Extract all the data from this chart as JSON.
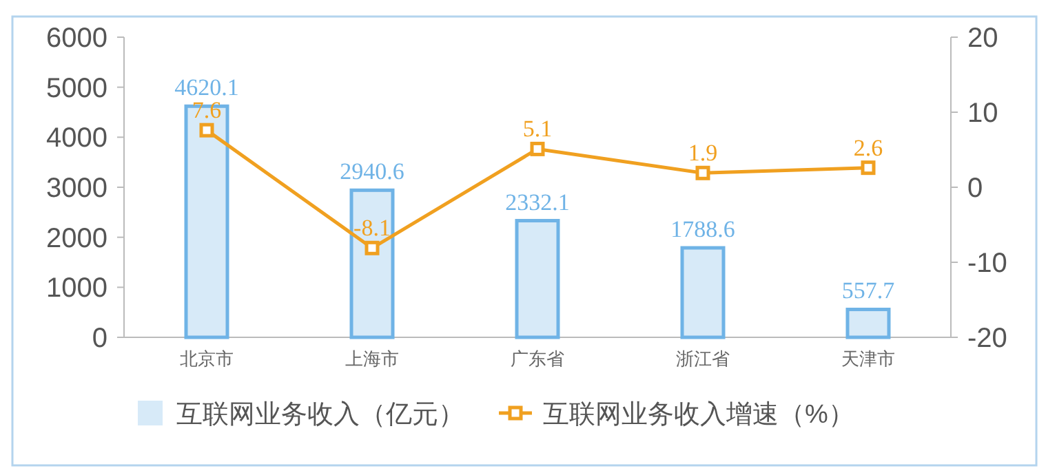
{
  "chart_data": {
    "type": "bar",
    "categories": [
      "北京市",
      "上海市",
      "广东省",
      "浙江省",
      "天津市"
    ],
    "series": [
      {
        "name": "互联网业务收入（亿元）",
        "color": "#6fb3e6",
        "values": [
          4620.1,
          2940.6,
          2332.1,
          1788.6,
          557.7
        ]
      },
      {
        "name": "互联网业务收入增速（%）",
        "type": "line",
        "axis": "y2",
        "color": "#f0a020",
        "marker": "square",
        "values": [
          7.6,
          -8.1,
          5.1,
          1.9,
          2.6
        ]
      }
    ],
    "ylim": [
      0,
      6000
    ],
    "yticks": [
      0,
      1000,
      2000,
      3000,
      4000,
      5000,
      6000
    ],
    "y2lim": [
      -20,
      20
    ],
    "y2ticks": [
      -20,
      -10,
      0,
      10,
      20
    ],
    "data_labels": true,
    "legend": "bottom",
    "grid": false
  }
}
